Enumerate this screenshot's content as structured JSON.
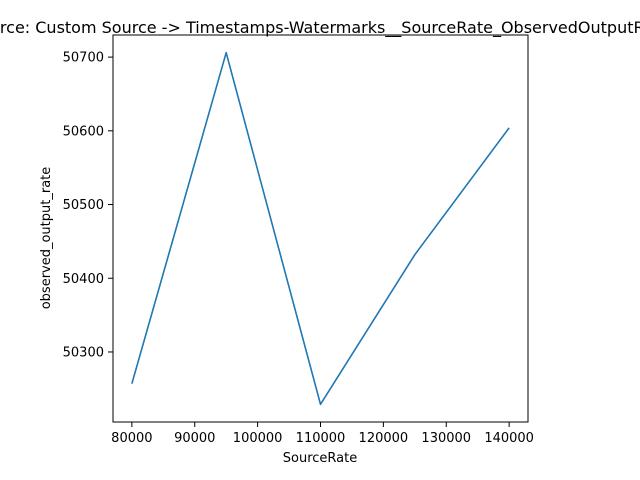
{
  "chart_data": {
    "type": "line",
    "title": "Source: Custom Source -> Timestamps-Watermarks__SourceRate_ObservedOutputRate",
    "xlabel": "SourceRate",
    "ylabel": "observed_output_rate",
    "x": [
      80000,
      95000,
      110000,
      125000,
      140000
    ],
    "series": [
      {
        "values": [
          50257,
          50706,
          50229,
          50432,
          50604
        ],
        "color": "#1f77b4"
      }
    ],
    "xlim": [
      77000,
      143000
    ],
    "ylim": [
      50205,
      50730
    ],
    "xticks": [
      80000,
      90000,
      100000,
      110000,
      120000,
      130000,
      140000
    ],
    "xtick_labels": [
      "80000",
      "90000",
      "100000",
      "110000",
      "120000",
      "130000",
      "140000"
    ],
    "yticks": [
      50300,
      50400,
      50500,
      50600,
      50700
    ],
    "ytick_labels": [
      "50300",
      "50400",
      "50500",
      "50600",
      "50700"
    ],
    "grid": false,
    "legend": "none"
  }
}
